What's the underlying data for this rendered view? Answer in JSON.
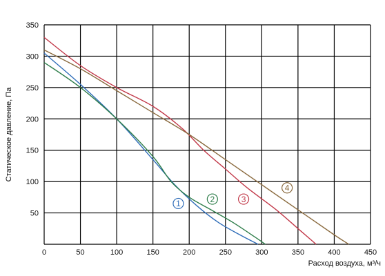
{
  "chart_data": {
    "type": "line",
    "xlabel": "Расход воздуха, м³/ч",
    "ylabel": "Статическое давление, Па",
    "xlim": [
      0,
      450
    ],
    "ylim": [
      0,
      350
    ],
    "x_ticks": [
      "0",
      "50",
      "100",
      "150",
      "200",
      "250",
      "300",
      "350",
      "400",
      "450"
    ],
    "y_ticks": [
      "50",
      "100",
      "150",
      "200",
      "250",
      "300",
      "350"
    ],
    "grid": true,
    "series": [
      {
        "name": "1",
        "color": "#2f6db8",
        "x": [
          0,
          50,
          100,
          150,
          180,
          210,
          240,
          270,
          295
        ],
        "y": [
          305,
          255,
          200,
          135,
          95,
          62,
          35,
          15,
          0
        ]
      },
      {
        "name": "2",
        "color": "#2e7d4a",
        "x": [
          0,
          50,
          100,
          150,
          175,
          200,
          230,
          260,
          290,
          305
        ],
        "y": [
          290,
          250,
          200,
          140,
          100,
          75,
          55,
          35,
          12,
          0
        ]
      },
      {
        "name": "3",
        "color": "#c23a4a",
        "x": [
          0,
          50,
          100,
          150,
          190,
          220,
          250,
          280,
          320,
          350,
          375
        ],
        "y": [
          330,
          285,
          250,
          220,
          185,
          150,
          120,
          90,
          55,
          25,
          0
        ]
      },
      {
        "name": "4",
        "color": "#8a6a3e",
        "x": [
          0,
          50,
          100,
          150,
          200,
          250,
          300,
          350,
          400,
          420
        ],
        "y": [
          310,
          280,
          245,
          210,
          175,
          135,
          95,
          55,
          15,
          0
        ]
      }
    ],
    "annotations": [
      {
        "text": "1",
        "x": 185,
        "y": 65,
        "color": "#2f6db8"
      },
      {
        "text": "2",
        "x": 232,
        "y": 72,
        "color": "#2e7d4a"
      },
      {
        "text": "3",
        "x": 275,
        "y": 72,
        "color": "#c23a4a"
      },
      {
        "text": "4",
        "x": 335,
        "y": 90,
        "color": "#8a6a3e"
      }
    ]
  }
}
